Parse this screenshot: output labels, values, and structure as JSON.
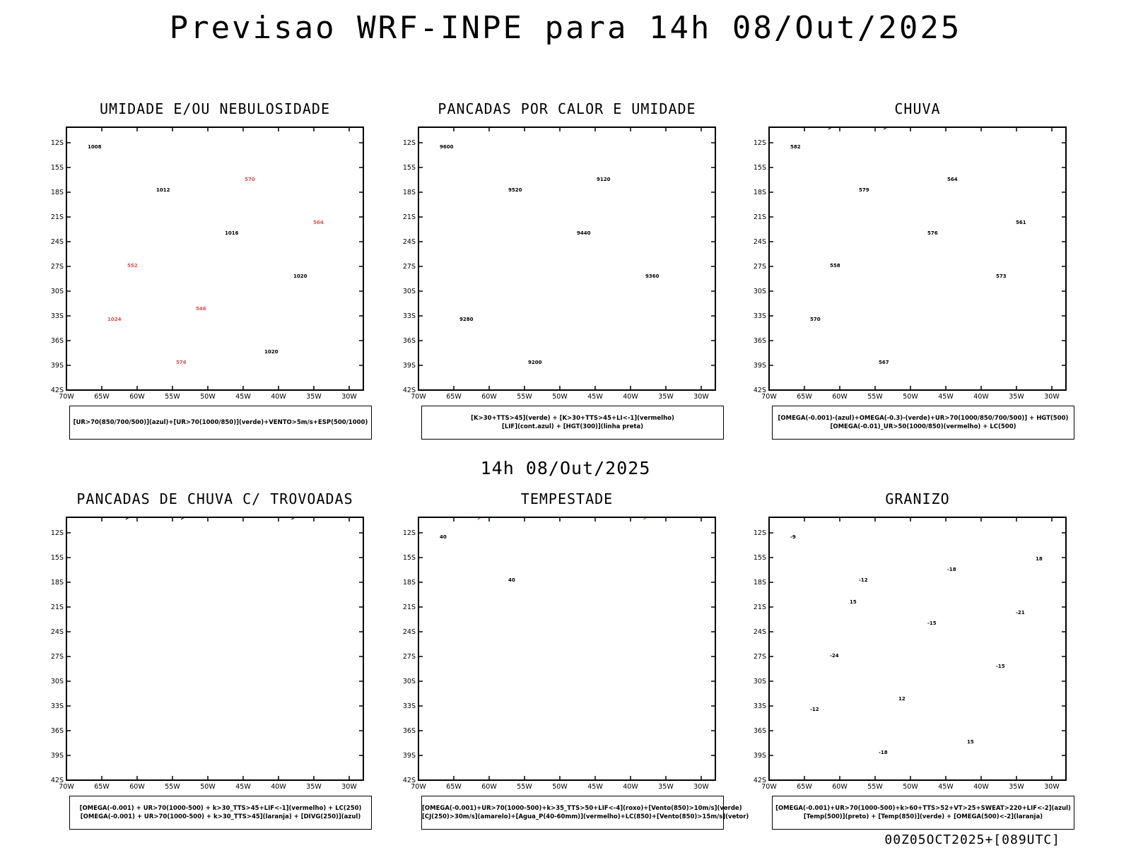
{
  "main_title": "Previsao WRF-INPE  para 14h 08/Out/2025",
  "mid_title": "14h 08/Out/2025",
  "footer": "00Z05OCT2025+[089UTC]",
  "lat_ticks": [
    "12S",
    "15S",
    "18S",
    "21S",
    "24S",
    "27S",
    "30S",
    "33S",
    "36S",
    "39S",
    "42S"
  ],
  "lon_ticks": [
    "70W",
    "65W",
    "60W",
    "55W",
    "50W",
    "45W",
    "40W",
    "35W",
    "30W"
  ],
  "colors": {
    "blue": "#4a4ae6",
    "green": "#22cc22",
    "red": "#f04848",
    "teal": "#1f4d4d",
    "yellow": "#e6d430",
    "orange": "#f08a20",
    "black": "#000000"
  },
  "panels": [
    {
      "id": "umidade",
      "title": "UMIDADE E/OU NEBULOSIDADE",
      "legend": [
        "[UR>70(850/700/500)](azul)+[UR>70(1000/850)](verde)+VENTO>5m/s+ESP(500/1000)"
      ],
      "contour_labels": [
        "1008",
        "1012",
        "1016",
        "1020",
        "1024",
        "576",
        "570",
        "564",
        "552",
        "546",
        "1020"
      ]
    },
    {
      "id": "pancadas-calor",
      "title": "PANCADAS POR CALOR E UMIDADE",
      "legend": [
        "[K>30+TTS>45](verde) + [K>30+TTS>45+LI<-1](vermelho)",
        "[LIF](cont.azul) + [HGT(300)](linha preta)"
      ],
      "contour_labels": [
        "9600",
        "9520",
        "9440",
        "9360",
        "9280",
        "9200",
        "9120"
      ]
    },
    {
      "id": "chuva",
      "title": "CHUVA",
      "legend": [
        "[OMEGA(-0.001)-(azul)+OMEGA(-0.3)-(verde)+UR>70(1000/850/700/500)] + HGT(500)",
        "[OMEGA(-0.01)_UR>50(1000/850)(vermelho) + LC(500)"
      ],
      "contour_labels": [
        "582",
        "579",
        "576",
        "573",
        "570",
        "567",
        "564",
        "561",
        "558"
      ]
    },
    {
      "id": "pancadas-trovoadas",
      "title": "PANCADAS DE CHUVA C/ TROVOADAS",
      "legend": [
        "[OMEGA(-0.001) + UR>70(1000-500) + k>30_TTS>45+LIF<-1](vermelho) + LC(250)",
        "[OMEGA(-0.001) + UR>70(1000-500) + k>30_TTS>45](laranja) + [DIVG(250)](azul)"
      ],
      "contour_labels": []
    },
    {
      "id": "tempestade",
      "title": "TEMPESTADE",
      "legend": [
        "[OMEGA(-0.001)+UR>70(1000-500)+k>35_TTS>50+LIF<-4](roxo)+[Vento(850)>10m/s](verde)",
        "[CJ(250)>30m/s](amarelo)+[Agua_P(40-60mm)](vermelho)+LC(850)+[Vento(850)>15m/s](vetor)"
      ],
      "contour_labels": [
        "40",
        "40"
      ]
    },
    {
      "id": "granizo",
      "title": "GRANIZO",
      "legend": [
        "[OMEGA(-0.001)+UR>70(1000-500)+k>60+TTS>52+VT>25+SWEAT>220+LIF<-2](azul)",
        "[Temp(500)](preto) + [Temp(850)](verde) + [OMEGA(500)<-2](laranja)"
      ],
      "contour_labels": [
        "-9",
        "-12",
        "-15",
        "-15",
        "-12",
        "-18",
        "-18",
        "-21",
        "-24",
        "12",
        "15",
        "18",
        "15"
      ]
    }
  ]
}
